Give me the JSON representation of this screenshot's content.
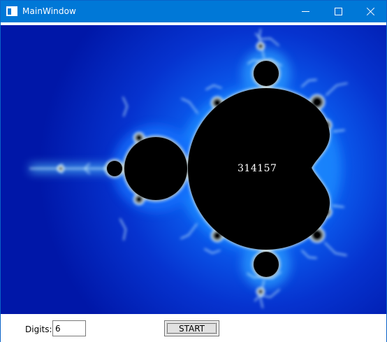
{
  "window": {
    "title": "MainWindow"
  },
  "visualization": {
    "output_number": "314157",
    "colors": {
      "background_dark": "#0017a8",
      "background_glow": "#2e91ff",
      "set_fill": "#000000",
      "edge": "#ccf7ff"
    }
  },
  "controls": {
    "digits_label": "Digits:",
    "digits_value": "6",
    "start_label": "START"
  }
}
